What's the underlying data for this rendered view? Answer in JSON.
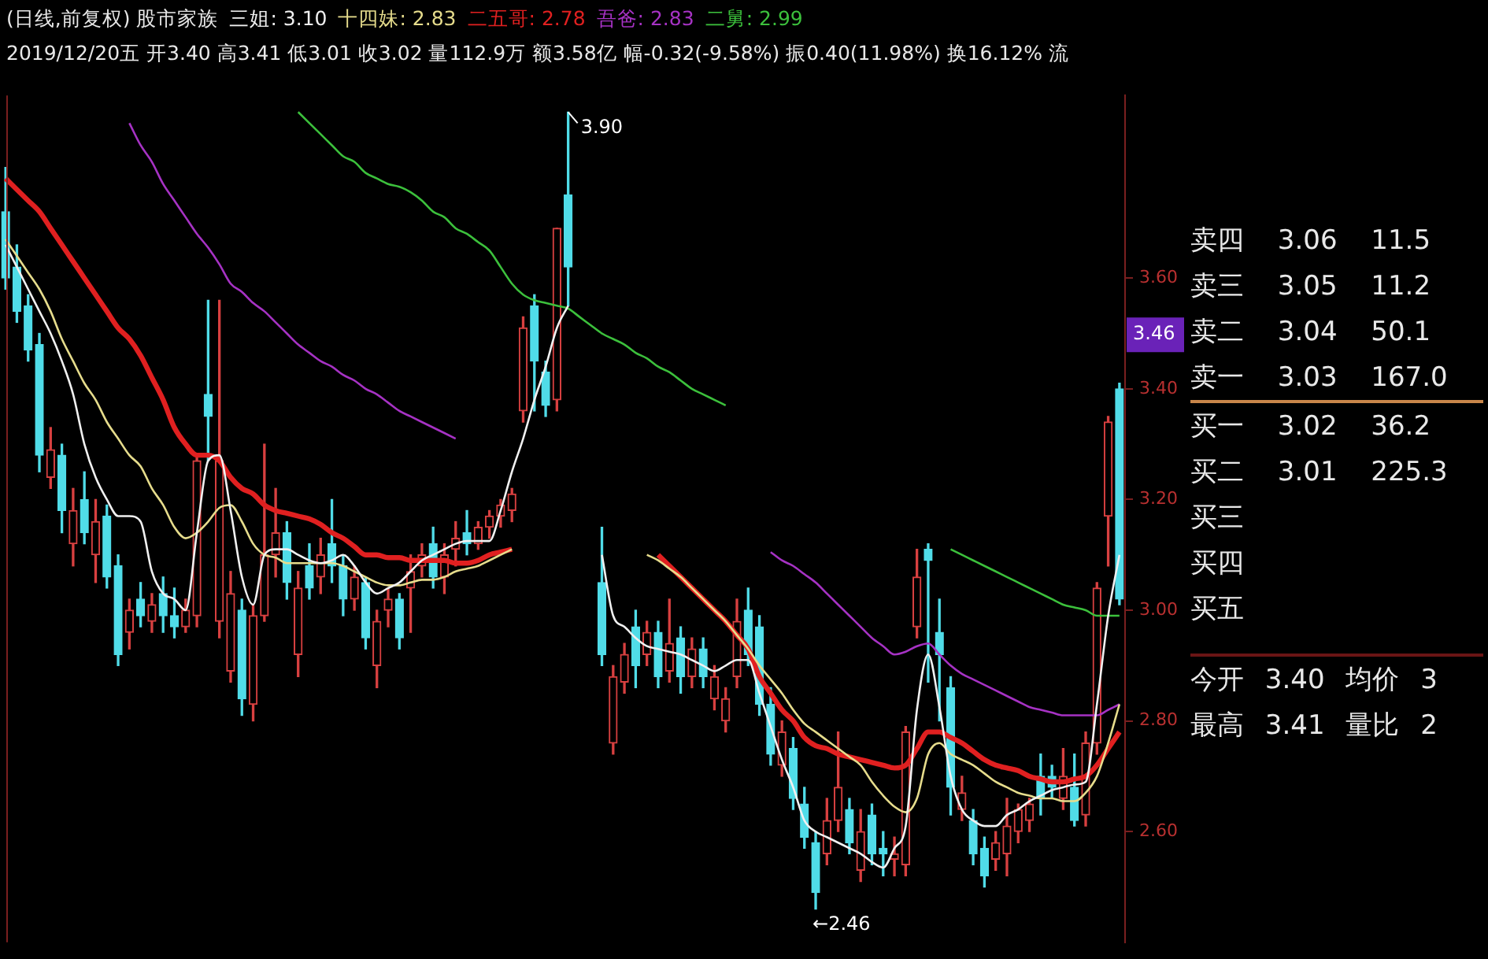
{
  "chart_data": [
    {
      "type": "candlestick",
      "title": "(日线,前复权) 股市家族",
      "subtitle": "2019/12/20五 开3.40 高3.41 低3.01 收3.02 量112.9万 额3.58亿 幅-0.32(-9.58%) 振0.40(11.98%) 换16.12% 流",
      "categories": [
        null,
        null,
        null,
        null,
        null,
        null,
        null,
        null,
        null,
        null,
        null,
        null,
        null,
        null,
        null,
        null,
        null,
        null,
        null,
        null,
        null,
        null,
        null,
        null,
        null,
        null,
        null,
        null,
        null,
        null,
        null,
        null,
        null,
        null,
        null,
        null,
        null,
        null,
        null,
        null,
        null,
        null,
        null,
        null,
        null,
        null,
        null,
        null,
        null,
        null,
        null,
        null,
        null,
        null,
        null,
        null,
        null,
        null,
        null,
        null,
        null,
        null,
        null,
        null,
        null,
        null,
        null,
        null,
        null,
        null,
        null,
        null,
        null,
        null,
        null,
        null,
        null,
        null,
        null,
        null,
        null,
        null,
        null,
        null,
        null,
        null,
        null,
        null,
        null,
        null,
        null,
        null,
        null,
        null,
        null,
        null,
        null,
        null,
        null,
        null
      ],
      "ohlc": [
        [
          3.72,
          3.8,
          3.58,
          3.6
        ],
        [
          3.62,
          3.66,
          3.52,
          3.54
        ],
        [
          3.55,
          3.57,
          3.45,
          3.47
        ],
        [
          3.48,
          3.5,
          3.25,
          3.28
        ],
        [
          3.24,
          3.33,
          3.22,
          3.29
        ],
        [
          3.28,
          3.3,
          3.14,
          3.18
        ],
        [
          3.12,
          3.22,
          3.08,
          3.18
        ],
        [
          3.2,
          3.25,
          3.12,
          3.14
        ],
        [
          3.1,
          3.2,
          3.05,
          3.16
        ],
        [
          3.17,
          3.19,
          3.04,
          3.06
        ],
        [
          3.08,
          3.1,
          2.9,
          2.92
        ],
        [
          2.96,
          3.02,
          2.93,
          3.0
        ],
        [
          3.02,
          3.05,
          2.97,
          2.99
        ],
        [
          2.98,
          3.03,
          2.96,
          3.01
        ],
        [
          3.03,
          3.06,
          2.96,
          2.99
        ],
        [
          2.99,
          3.04,
          2.95,
          2.97
        ],
        [
          2.97,
          3.02,
          2.96,
          3.0
        ],
        [
          2.99,
          3.28,
          2.97,
          3.27
        ],
        [
          3.39,
          3.56,
          3.27,
          3.35
        ],
        [
          2.98,
          3.56,
          2.95,
          3.27
        ],
        [
          2.89,
          3.07,
          2.87,
          3.03
        ],
        [
          3.0,
          3.02,
          2.81,
          2.84
        ],
        [
          2.83,
          3.01,
          2.8,
          2.99
        ],
        [
          2.99,
          3.3,
          2.98,
          3.1
        ],
        [
          3.1,
          3.22,
          3.06,
          3.14
        ],
        [
          3.14,
          3.16,
          3.02,
          3.05
        ],
        [
          2.92,
          3.07,
          2.88,
          3.04
        ],
        [
          3.08,
          3.12,
          3.02,
          3.04
        ],
        [
          3.06,
          3.13,
          3.03,
          3.1
        ],
        [
          3.12,
          3.2,
          3.05,
          3.08
        ],
        [
          3.08,
          3.1,
          2.99,
          3.02
        ],
        [
          3.02,
          3.08,
          3.0,
          3.06
        ],
        [
          3.05,
          3.06,
          2.93,
          2.95
        ],
        [
          2.9,
          3.0,
          2.86,
          2.98
        ],
        [
          3.0,
          3.04,
          2.97,
          3.02
        ],
        [
          3.02,
          3.03,
          2.93,
          2.95
        ],
        [
          3.04,
          3.1,
          2.96,
          3.07
        ],
        [
          3.08,
          3.12,
          3.06,
          3.1
        ],
        [
          3.12,
          3.15,
          3.04,
          3.06
        ],
        [
          3.06,
          3.12,
          3.03,
          3.1
        ],
        [
          3.11,
          3.16,
          3.08,
          3.13
        ],
        [
          3.14,
          3.18,
          3.1,
          3.12
        ],
        [
          3.12,
          3.16,
          3.11,
          3.15
        ],
        [
          3.15,
          3.18,
          3.13,
          3.17
        ],
        [
          3.17,
          3.2,
          3.15,
          3.19
        ],
        [
          3.18,
          3.22,
          3.16,
          3.21
        ],
        [
          3.36,
          3.53,
          3.34,
          3.51
        ],
        [
          3.55,
          3.57,
          3.36,
          3.45
        ],
        [
          3.43,
          3.45,
          3.35,
          3.37
        ],
        [
          3.38,
          3.69,
          3.36,
          3.69
        ],
        [
          3.75,
          3.9,
          3.55,
          3.62
        ],
        null,
        null,
        [
          3.05,
          3.15,
          2.9,
          2.92
        ],
        [
          2.76,
          2.9,
          2.74,
          2.88
        ],
        [
          2.87,
          2.94,
          2.85,
          2.92
        ],
        [
          2.97,
          3.0,
          2.86,
          2.9
        ],
        [
          2.92,
          2.98,
          2.9,
          2.96
        ],
        [
          2.96,
          2.98,
          2.86,
          2.88
        ],
        [
          2.89,
          3.02,
          2.87,
          2.94
        ],
        [
          2.95,
          2.97,
          2.85,
          2.88
        ],
        [
          2.88,
          2.95,
          2.86,
          2.93
        ],
        [
          2.93,
          2.95,
          2.86,
          2.88
        ],
        [
          2.84,
          2.9,
          2.82,
          2.88
        ],
        [
          2.8,
          2.86,
          2.78,
          2.84
        ],
        [
          2.88,
          3.02,
          2.86,
          2.98
        ],
        [
          3.0,
          3.04,
          2.9,
          2.92
        ],
        [
          2.97,
          2.99,
          2.81,
          2.83
        ],
        [
          2.83,
          2.86,
          2.72,
          2.74
        ],
        [
          2.72,
          2.8,
          2.7,
          2.78
        ],
        [
          2.75,
          2.77,
          2.64,
          2.66
        ],
        [
          2.65,
          2.68,
          2.57,
          2.59
        ],
        [
          2.58,
          2.6,
          2.46,
          2.49
        ],
        [
          2.56,
          2.66,
          2.54,
          2.62
        ],
        [
          2.62,
          2.78,
          2.6,
          2.68
        ],
        [
          2.64,
          2.66,
          2.56,
          2.58
        ],
        [
          2.53,
          2.64,
          2.51,
          2.6
        ],
        [
          2.63,
          2.65,
          2.54,
          2.56
        ],
        [
          2.57,
          2.6,
          2.52,
          2.56
        ],
        [
          2.55,
          2.59,
          2.52,
          2.56
        ],
        [
          2.54,
          2.79,
          2.52,
          2.78
        ],
        [
          2.97,
          3.11,
          2.95,
          3.06
        ],
        [
          3.11,
          3.12,
          2.87,
          3.09
        ],
        [
          2.96,
          3.02,
          2.8,
          2.92
        ],
        [
          2.86,
          2.88,
          2.63,
          2.68
        ],
        [
          2.64,
          2.7,
          2.62,
          2.67
        ],
        [
          2.62,
          2.64,
          2.54,
          2.56
        ],
        [
          2.57,
          2.59,
          2.5,
          2.52
        ],
        [
          2.55,
          2.6,
          2.53,
          2.58
        ],
        [
          2.56,
          2.66,
          2.52,
          2.61
        ],
        [
          2.6,
          2.65,
          2.58,
          2.64
        ],
        [
          2.62,
          2.66,
          2.6,
          2.65
        ],
        [
          2.7,
          2.74,
          2.63,
          2.66
        ],
        [
          2.7,
          2.72,
          2.66,
          2.68
        ],
        [
          2.66,
          2.75,
          2.64,
          2.7
        ],
        [
          2.68,
          2.74,
          2.61,
          2.62
        ],
        [
          2.63,
          2.78,
          2.61,
          2.76
        ],
        [
          2.76,
          3.05,
          2.74,
          3.04
        ],
        [
          3.17,
          3.35,
          3.08,
          3.34
        ],
        [
          3.4,
          3.41,
          3.01,
          3.02
        ]
      ],
      "colors": [
        "#50dce8",
        "#50dce8",
        "#50dce8",
        "#50dce8",
        "#d84040",
        "#50dce8",
        "#d84040",
        "#50dce8",
        "#d84040",
        "#50dce8",
        "#50dce8",
        "#d84040",
        "#50dce8",
        "#d84040",
        "#50dce8",
        "#50dce8",
        "#d84040",
        "#d84040",
        "#50dce8",
        "#d84040",
        "#d84040",
        "#50dce8",
        "#d84040",
        "#d84040",
        "#d84040",
        "#50dce8",
        "#d84040",
        "#50dce8",
        "#d84040",
        "#50dce8",
        "#50dce8",
        "#d84040",
        "#50dce8",
        "#d84040",
        "#d84040",
        "#50dce8",
        "#d84040",
        "#d84040",
        "#50dce8",
        "#d84040",
        "#d84040",
        "#50dce8",
        "#d84040",
        "#d84040",
        "#d84040",
        "#d84040",
        "#d84040",
        "#50dce8",
        "#50dce8",
        "#d84040",
        "#50dce8",
        null,
        null,
        "#50dce8",
        "#d84040",
        "#d84040",
        "#50dce8",
        "#d84040",
        "#50dce8",
        "#d84040",
        "#50dce8",
        "#d84040",
        "#50dce8",
        "#d84040",
        "#d84040",
        "#d84040",
        "#50dce8",
        "#50dce8",
        "#50dce8",
        "#d84040",
        "#50dce8",
        "#50dce8",
        "#50dce8",
        "#d84040",
        "#d84040",
        "#50dce8",
        "#d84040",
        "#50dce8",
        "#50dce8",
        "#d84040",
        "#d84040",
        "#d84040",
        "#50dce8",
        "#50dce8",
        "#50dce8",
        "#d84040",
        "#50dce8",
        "#50dce8",
        "#d84040",
        "#d84040",
        "#d84040",
        "#d84040",
        "#50dce8",
        "#50dce8",
        "#d84040",
        "#50dce8",
        "#d84040",
        "#d84040",
        "#d84040",
        "#50dce8"
      ],
      "series": [
        {
          "name": "三姐: 3.10",
          "type": "line",
          "color": "#f0f0f0",
          "values": [
            3.66,
            3.62,
            3.58,
            3.54,
            3.5,
            3.45,
            3.39,
            3.3,
            3.24,
            3.2,
            3.17,
            3.17,
            3.16,
            3.07,
            3.03,
            3.02,
            3.0,
            3.14,
            3.27,
            3.28,
            3.18,
            3.06,
            3.01,
            3.1,
            3.11,
            3.11,
            3.1,
            3.09,
            3.085,
            3.09,
            3.1,
            3.08,
            3.05,
            3.03,
            3.04,
            3.05,
            3.07,
            3.09,
            3.1,
            3.11,
            3.12,
            3.125,
            3.125,
            3.125,
            3.18,
            3.25,
            3.31,
            3.38,
            3.44,
            3.51,
            3.55,
            null,
            null,
            3.1,
            2.99,
            2.97,
            2.95,
            2.935,
            2.93,
            2.925,
            2.92,
            2.91,
            2.9,
            2.89,
            2.9,
            2.91,
            2.91,
            2.85,
            2.79,
            2.73,
            2.68,
            2.62,
            2.6,
            2.59,
            2.58,
            2.57,
            2.56,
            2.545,
            2.535,
            2.57,
            2.61,
            2.82,
            2.92,
            2.825,
            2.7,
            2.64,
            2.62,
            2.61,
            2.61,
            2.63,
            2.64,
            2.655,
            2.665,
            2.675,
            2.68,
            2.685,
            2.69,
            2.83,
            2.99,
            3.1
          ]
        },
        {
          "name": "十四妹: 2.83",
          "type": "line",
          "color": "#e6dc8c",
          "values": [
            3.67,
            3.64,
            3.61,
            3.58,
            3.54,
            3.49,
            3.45,
            3.41,
            3.38,
            3.34,
            3.31,
            3.28,
            3.26,
            3.22,
            3.19,
            3.15,
            3.13,
            3.14,
            3.16,
            3.185,
            3.19,
            3.16,
            3.12,
            3.1,
            3.095,
            3.085,
            3.085,
            3.085,
            3.085,
            3.085,
            3.08,
            3.07,
            3.06,
            3.05,
            3.045,
            3.045,
            3.05,
            3.055,
            3.055,
            3.06,
            3.07,
            3.075,
            3.08,
            3.09,
            3.1,
            3.11,
            null,
            null,
            null,
            null,
            null,
            null,
            null,
            null,
            null,
            null,
            null,
            3.1,
            3.09,
            3.075,
            3.06,
            3.04,
            3.02,
            3.0,
            2.98,
            2.955,
            2.93,
            2.9,
            2.875,
            2.85,
            2.82,
            2.795,
            2.78,
            2.765,
            2.75,
            2.735,
            2.72,
            2.69,
            2.665,
            2.645,
            2.635,
            2.66,
            2.74,
            2.76,
            2.74,
            2.73,
            2.72,
            2.705,
            2.69,
            2.68,
            2.67,
            2.665,
            2.66,
            2.66,
            2.655,
            2.655,
            2.67,
            2.7,
            2.76,
            2.83
          ]
        },
        {
          "name": "二五哥: 2.78",
          "type": "line",
          "color": "#e02020",
          "values": [
            3.78,
            3.76,
            3.74,
            3.72,
            3.69,
            3.66,
            3.63,
            3.6,
            3.57,
            3.54,
            3.51,
            3.49,
            3.46,
            3.42,
            3.38,
            3.33,
            3.3,
            3.28,
            3.28,
            3.27,
            3.24,
            3.22,
            3.21,
            3.19,
            3.18,
            3.175,
            3.17,
            3.165,
            3.155,
            3.14,
            3.13,
            3.115,
            3.1,
            3.1,
            3.095,
            3.095,
            3.09,
            3.09,
            3.09,
            3.09,
            3.085,
            3.085,
            3.09,
            3.1,
            3.105,
            3.11,
            null,
            null,
            null,
            null,
            null,
            null,
            null,
            null,
            null,
            null,
            null,
            null,
            3.1,
            3.08,
            3.06,
            3.04,
            3.02,
            3.0,
            2.98,
            2.955,
            2.93,
            2.88,
            2.85,
            2.82,
            2.8,
            2.77,
            2.755,
            2.75,
            2.74,
            2.735,
            2.73,
            2.725,
            2.72,
            2.715,
            2.72,
            2.75,
            2.78,
            2.78,
            2.77,
            2.76,
            2.745,
            2.73,
            2.72,
            2.715,
            2.71,
            2.7,
            2.695,
            2.69,
            2.69,
            2.695,
            2.7,
            2.72,
            2.75,
            2.78
          ]
        },
        {
          "name": "吾爸: 2.83",
          "type": "line",
          "color": "#a632c4",
          "values": [
            null,
            null,
            null,
            null,
            null,
            null,
            null,
            null,
            null,
            null,
            null,
            3.88,
            3.84,
            3.81,
            3.77,
            3.74,
            3.71,
            3.68,
            3.655,
            3.625,
            3.59,
            3.575,
            3.555,
            3.54,
            3.52,
            3.5,
            3.48,
            3.465,
            3.45,
            3.44,
            3.425,
            3.415,
            3.4,
            3.39,
            3.375,
            3.36,
            3.35,
            3.34,
            3.33,
            3.32,
            3.31,
            null,
            null,
            null,
            null,
            null,
            null,
            null,
            null,
            null,
            null,
            null,
            null,
            null,
            null,
            null,
            null,
            null,
            null,
            null,
            null,
            null,
            null,
            null,
            null,
            null,
            null,
            null,
            3.105,
            3.09,
            3.08,
            3.065,
            3.05,
            3.03,
            3.01,
            2.99,
            2.97,
            2.95,
            2.935,
            2.92,
            2.925,
            2.935,
            2.94,
            2.92,
            2.9,
            2.885,
            2.875,
            2.865,
            2.855,
            2.845,
            2.835,
            2.825,
            2.82,
            2.815,
            2.81,
            2.81,
            2.81,
            2.81,
            2.82,
            2.83
          ]
        },
        {
          "name": "二舅: 2.99",
          "type": "line",
          "color": "#3cc03c",
          "values": [
            null,
            null,
            null,
            null,
            null,
            null,
            null,
            null,
            null,
            null,
            null,
            null,
            null,
            null,
            null,
            null,
            null,
            null,
            null,
            null,
            null,
            null,
            null,
            null,
            null,
            null,
            3.9,
            3.88,
            3.86,
            3.84,
            3.82,
            3.81,
            3.79,
            3.78,
            3.77,
            3.765,
            3.755,
            3.74,
            3.72,
            3.71,
            3.69,
            3.68,
            3.665,
            3.65,
            3.62,
            3.59,
            3.57,
            3.56,
            3.555,
            3.55,
            3.545,
            3.53,
            3.515,
            3.5,
            3.49,
            3.48,
            3.465,
            3.455,
            3.44,
            3.43,
            3.415,
            3.4,
            3.39,
            3.38,
            3.37,
            null,
            null,
            null,
            null,
            null,
            null,
            null,
            null,
            null,
            null,
            null,
            null,
            null,
            null,
            null,
            null,
            null,
            null,
            null,
            3.11,
            3.1,
            3.09,
            3.08,
            3.07,
            3.06,
            3.05,
            3.04,
            3.03,
            3.02,
            3.01,
            3.005,
            3.0,
            2.99,
            2.99,
            2.99
          ]
        }
      ],
      "ylim": [
        2.4,
        3.93
      ],
      "yticks": [
        {
          "value": 2.6,
          "label": "2.60"
        },
        {
          "value": 2.8,
          "label": "2.80"
        },
        {
          "value": 3.0,
          "label": "3.00"
        },
        {
          "value": 3.2,
          "label": "3.20"
        },
        {
          "value": 3.4,
          "label": "3.40"
        },
        {
          "value": 3.6,
          "label": "3.60"
        }
      ],
      "tick_labels": "y",
      "marker": "none",
      "line_style": "solid",
      "annotations": [
        "3.90",
        "←2.46",
        "3.46"
      ]
    },
    {
      "type": "other",
      "annotations": [
        "卖四 3.06 11.5",
        "卖三 3.05 11.2",
        "卖二 3.04 50.1",
        "卖一 3.03 167.0",
        "买一 3.02 36.2",
        "买二 3.01 225.3",
        "买三",
        "买四",
        "买五",
        "今开 3.40 均价 3",
        "最高 3.41 量比 2"
      ]
    }
  ]
}
